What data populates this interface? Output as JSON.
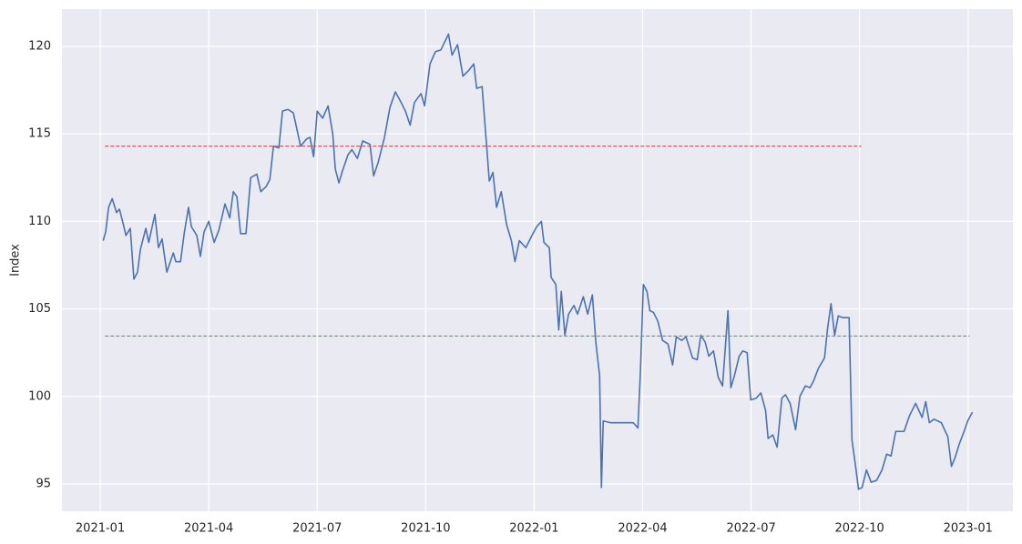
{
  "chart_data": {
    "type": "line",
    "y_label": "Index",
    "x": [
      0.08,
      0.15,
      0.23,
      0.33,
      0.45,
      0.53,
      0.63,
      0.71,
      0.83,
      0.93,
      1.03,
      1.11,
      1.26,
      1.34,
      1.51,
      1.61,
      1.71,
      1.84,
      2.02,
      2.09,
      2.22,
      2.32,
      2.44,
      2.52,
      2.67,
      2.77,
      2.87,
      3.0,
      3.15,
      3.28,
      3.45,
      3.58,
      3.68,
      3.78,
      3.88,
      4.03,
      4.16,
      4.33,
      4.44,
      4.59,
      4.69,
      4.79,
      4.94,
      5.04,
      5.19,
      5.34,
      5.54,
      5.7,
      5.8,
      5.9,
      6.0,
      6.15,
      6.3,
      6.43,
      6.5,
      6.6,
      6.7,
      6.85,
      6.96,
      7.11,
      7.26,
      7.46,
      7.56,
      7.69,
      7.86,
      8.01,
      8.16,
      8.32,
      8.44,
      8.57,
      8.69,
      8.87,
      8.97,
      9.12,
      9.27,
      9.42,
      9.63,
      9.73,
      9.88,
      10.03,
      10.18,
      10.33,
      10.41,
      10.56,
      10.66,
      10.76,
      10.86,
      10.96,
      11.09,
      11.24,
      11.37,
      11.47,
      11.59,
      11.77,
      11.94,
      12.07,
      12.2,
      12.27,
      12.42,
      12.47,
      12.6,
      12.68,
      12.75,
      12.85,
      12.95,
      13.1,
      13.2,
      13.36,
      13.48,
      13.61,
      13.71,
      13.81,
      13.86,
      13.91,
      14.11,
      14.49,
      14.74,
      14.87,
      14.94,
      15.02,
      15.12,
      15.2,
      15.3,
      15.42,
      15.55,
      15.7,
      15.83,
      15.93,
      16.08,
      16.2,
      16.38,
      16.51,
      16.61,
      16.73,
      16.83,
      16.96,
      17.09,
      17.21,
      17.36,
      17.44,
      17.54,
      17.67,
      17.77,
      17.89,
      17.99,
      18.14,
      18.27,
      18.4,
      18.47,
      18.6,
      18.72,
      18.85,
      18.95,
      19.08,
      19.23,
      19.35,
      19.5,
      19.63,
      19.73,
      19.86,
      20.03,
      20.11,
      20.21,
      20.31,
      20.41,
      20.54,
      20.71,
      20.79,
      20.89,
      20.97,
      21.07,
      21.19,
      21.32,
      21.47,
      21.62,
      21.75,
      21.87,
      22.0,
      22.23,
      22.38,
      22.55,
      22.73,
      22.83,
      22.93,
      23.06,
      23.26,
      23.44,
      23.54,
      23.64,
      23.76,
      23.89,
      23.99,
      24.12
    ],
    "values": [
      108.9,
      109.4,
      110.8,
      111.3,
      110.5,
      110.7,
      109.9,
      109.2,
      109.6,
      106.7,
      107.1,
      108.4,
      109.6,
      108.8,
      110.4,
      108.5,
      109.0,
      107.1,
      108.2,
      107.7,
      107.7,
      109.3,
      110.8,
      109.7,
      109.2,
      108.0,
      109.4,
      110.0,
      108.8,
      109.5,
      111.0,
      110.2,
      111.7,
      111.4,
      109.3,
      109.3,
      112.5,
      112.7,
      111.7,
      112.0,
      112.4,
      114.3,
      114.2,
      116.3,
      116.4,
      116.2,
      114.3,
      114.7,
      114.8,
      113.7,
      116.3,
      115.9,
      116.6,
      115.0,
      113.0,
      112.2,
      112.9,
      113.8,
      114.1,
      113.6,
      114.6,
      114.4,
      112.6,
      113.4,
      114.8,
      116.5,
      117.4,
      116.8,
      116.3,
      115.5,
      116.8,
      117.3,
      116.6,
      119.0,
      119.7,
      119.8,
      120.7,
      119.5,
      120.1,
      118.3,
      118.6,
      119.0,
      117.6,
      117.7,
      115.0,
      112.3,
      112.8,
      110.8,
      111.7,
      109.8,
      108.9,
      107.7,
      108.9,
      108.5,
      109.2,
      109.7,
      110.0,
      108.8,
      108.5,
      106.8,
      106.4,
      103.8,
      106.0,
      103.5,
      104.7,
      105.2,
      104.7,
      105.7,
      104.7,
      105.8,
      103.0,
      101.2,
      94.8,
      98.6,
      98.5,
      98.5,
      98.5,
      98.2,
      101.5,
      106.4,
      106.0,
      104.9,
      104.8,
      104.3,
      103.2,
      103.0,
      101.8,
      103.4,
      103.2,
      103.4,
      102.2,
      102.1,
      103.5,
      103.1,
      102.3,
      102.6,
      101.1,
      100.6,
      104.9,
      100.5,
      101.2,
      102.3,
      102.6,
      102.5,
      99.8,
      99.9,
      100.2,
      99.2,
      97.6,
      97.8,
      97.1,
      99.9,
      100.1,
      99.6,
      98.1,
      100.0,
      100.6,
      100.5,
      100.9,
      101.6,
      102.2,
      103.8,
      105.3,
      103.5,
      104.6,
      104.5,
      104.5,
      97.5,
      96.0,
      94.7,
      94.8,
      95.8,
      95.1,
      95.2,
      95.8,
      96.7,
      96.6,
      98.0,
      98.0,
      98.9,
      99.6,
      98.8,
      99.7,
      98.5,
      98.7,
      98.5,
      97.7,
      96.0,
      96.5,
      97.3,
      98.0,
      98.6,
      99.1
    ],
    "color": "#4c72b0",
    "reference_lines": [
      {
        "y": 114.3,
        "x": [
          0.13,
          21.05
        ],
        "color": "#c44e52",
        "dashed": true
      },
      {
        "y": 103.45,
        "x": [
          0.13,
          24.05
        ],
        "color": "#55a868",
        "dashed": true
      }
    ],
    "xlim": [
      -1.06,
      25.24
    ],
    "xticks": [
      {
        "value": 0,
        "label": "2021-01"
      },
      {
        "value": 3,
        "label": "2021-04"
      },
      {
        "value": 6,
        "label": "2021-07"
      },
      {
        "value": 9,
        "label": "2021-10"
      },
      {
        "value": 12,
        "label": "2022-01"
      },
      {
        "value": 15,
        "label": "2022-04"
      },
      {
        "value": 18,
        "label": "2022-07"
      },
      {
        "value": 21,
        "label": "2022-10"
      },
      {
        "value": 24,
        "label": "2023-01"
      }
    ],
    "ylim": [
      93.44,
      122.13
    ],
    "yticks": [
      95,
      100,
      105,
      110,
      115,
      120
    ],
    "grid": true
  }
}
